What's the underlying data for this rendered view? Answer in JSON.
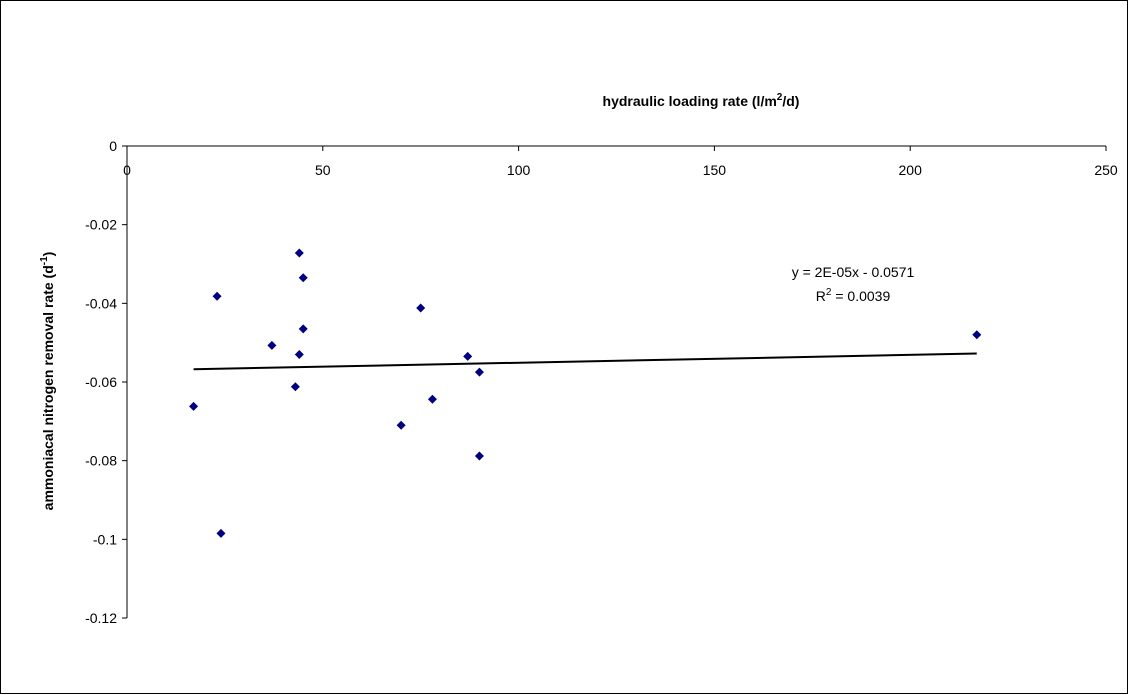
{
  "chart_data": {
    "type": "scatter",
    "title": "",
    "xlabel": "hydraulic loading rate (l/m",
    "xlabel_sup": "2",
    "xlabel_tail": "/d)",
    "ylabel": "ammoniacal nitrogen removal rate (d",
    "ylabel_sup": "-1",
    "ylabel_tail": ")",
    "xlim": [
      0,
      250
    ],
    "ylim": [
      -0.12,
      0
    ],
    "x_ticks": [
      0,
      50,
      100,
      150,
      200,
      250
    ],
    "x_tick_labels": [
      "0",
      "50",
      "100",
      "150",
      "200",
      "250"
    ],
    "y_ticks": [
      0,
      -0.02,
      -0.04,
      -0.06,
      -0.08,
      -0.1,
      -0.12
    ],
    "y_tick_labels": [
      "0",
      "-0.02",
      "-0.04",
      "-0.06",
      "-0.08",
      "-0.1",
      "-0.12"
    ],
    "grid": false,
    "x_axis_position": "top",
    "series": [
      {
        "marker": "diamond",
        "color": "#000080",
        "points": [
          {
            "x": 17,
            "y": -0.0662
          },
          {
            "x": 23,
            "y": -0.0382
          },
          {
            "x": 24,
            "y": -0.0985
          },
          {
            "x": 37,
            "y": -0.0507
          },
          {
            "x": 43,
            "y": -0.0612
          },
          {
            "x": 44,
            "y": -0.0272
          },
          {
            "x": 44,
            "y": -0.053
          },
          {
            "x": 45,
            "y": -0.0335
          },
          {
            "x": 45,
            "y": -0.0465
          },
          {
            "x": 70,
            "y": -0.071
          },
          {
            "x": 75,
            "y": -0.0412
          },
          {
            "x": 78,
            "y": -0.0644
          },
          {
            "x": 87,
            "y": -0.0535
          },
          {
            "x": 90,
            "y": -0.0575
          },
          {
            "x": 90,
            "y": -0.0788
          },
          {
            "x": 217,
            "y": -0.048
          }
        ]
      }
    ],
    "trendline": {
      "type": "linear",
      "slope": 2e-05,
      "intercept": -0.0571,
      "x_range": [
        17,
        217
      ],
      "color": "#000000",
      "equation_label": "y = 2E-05x - 0.0571",
      "r2_prefix": "R",
      "r2_sup": "2",
      "r2_suffix": " = 0.0039"
    }
  }
}
